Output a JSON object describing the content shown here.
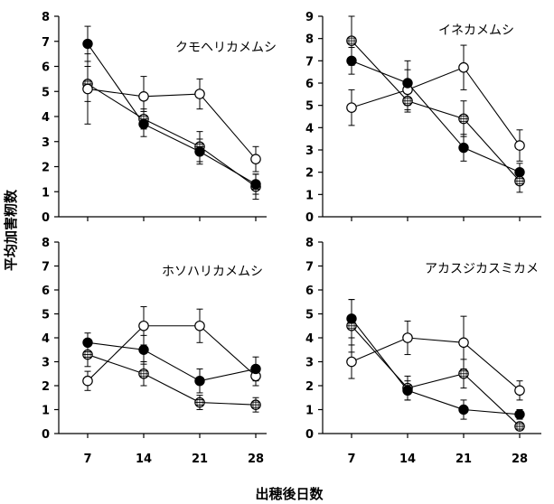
{
  "y_axis_label": "平均加害籾数",
  "x_axis_label": "出穂後日数",
  "chart_data": [
    {
      "type": "line",
      "title": "クモヘリカメムシ",
      "x": [
        7,
        14,
        21,
        28
      ],
      "ylim": [
        0,
        8
      ],
      "yticks": [
        0,
        1,
        2,
        3,
        4,
        5,
        6,
        7,
        8
      ],
      "series": [
        {
          "marker": "filled",
          "values": [
            6.9,
            3.7,
            2.6,
            1.3
          ],
          "err": [
            0.7,
            0.5,
            0.5,
            0.4
          ]
        },
        {
          "marker": "open",
          "values": [
            5.1,
            4.8,
            4.9,
            2.3
          ],
          "err": [
            1.4,
            0.8,
            0.6,
            0.5
          ]
        },
        {
          "marker": "crosshatch",
          "values": [
            5.3,
            3.9,
            2.8,
            1.2
          ],
          "err": [
            0.7,
            0.4,
            0.6,
            0.5
          ]
        }
      ]
    },
    {
      "type": "line",
      "title": "イネカメムシ",
      "x": [
        7,
        14,
        21,
        28
      ],
      "ylim": [
        0,
        9
      ],
      "yticks": [
        0,
        1,
        2,
        3,
        4,
        5,
        6,
        7,
        8,
        9
      ],
      "series": [
        {
          "marker": "filled",
          "values": [
            7.0,
            6.0,
            3.1,
            2.0
          ],
          "err": [
            0.6,
            1.0,
            0.6,
            0.4
          ]
        },
        {
          "marker": "open",
          "values": [
            4.9,
            5.7,
            6.7,
            3.2
          ],
          "err": [
            0.8,
            0.9,
            1.0,
            0.7
          ]
        },
        {
          "marker": "crosshatch",
          "values": [
            7.9,
            5.2,
            4.4,
            1.6
          ],
          "err": [
            1.1,
            0.5,
            0.8,
            0.5
          ]
        }
      ]
    },
    {
      "type": "line",
      "title": "ホソハリカメムシ",
      "x": [
        7,
        14,
        21,
        28
      ],
      "ylim": [
        0,
        8
      ],
      "yticks": [
        0,
        1,
        2,
        3,
        4,
        5,
        6,
        7,
        8
      ],
      "series": [
        {
          "marker": "filled",
          "values": [
            3.8,
            3.5,
            2.2,
            2.7
          ],
          "err": [
            0.4,
            0.6,
            0.5,
            0.5
          ]
        },
        {
          "marker": "open",
          "values": [
            2.2,
            4.5,
            4.5,
            2.4
          ],
          "err": [
            0.4,
            0.8,
            0.7,
            0.4
          ]
        },
        {
          "marker": "crosshatch",
          "values": [
            3.3,
            2.5,
            1.3,
            1.2
          ],
          "err": [
            0.5,
            0.5,
            0.3,
            0.3
          ]
        }
      ]
    },
    {
      "type": "line",
      "title": "アカスジカスミカメ",
      "x": [
        7,
        14,
        21,
        28
      ],
      "ylim": [
        0,
        8
      ],
      "yticks": [
        0,
        1,
        2,
        3,
        4,
        5,
        6,
        7,
        8
      ],
      "series": [
        {
          "marker": "filled",
          "values": [
            4.8,
            1.8,
            1.0,
            0.8
          ],
          "err": [
            0.8,
            0.4,
            0.4,
            0.2
          ]
        },
        {
          "marker": "open",
          "values": [
            3.0,
            4.0,
            3.8,
            1.8
          ],
          "err": [
            0.7,
            0.7,
            1.1,
            0.4
          ]
        },
        {
          "marker": "crosshatch",
          "values": [
            4.5,
            1.9,
            2.5,
            0.3
          ],
          "err": [
            1.1,
            0.5,
            0.6,
            0.1
          ]
        }
      ]
    }
  ]
}
